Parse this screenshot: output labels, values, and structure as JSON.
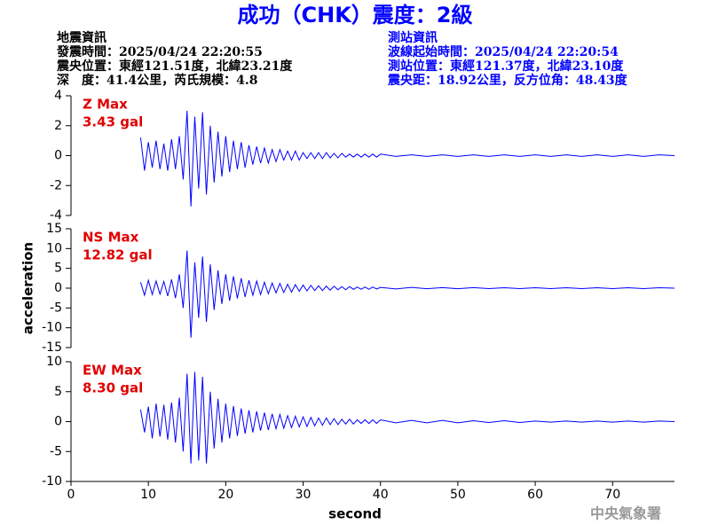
{
  "header": {
    "title": "成功（CHK）震度：2級",
    "left": [
      "地震資訊",
      "發震時間：2025/04/24 22:20:55",
      "震央位置：東經121.51度，北緯23.21度",
      "深　度：41.4公里，芮氏規模：4.8"
    ],
    "right": [
      "測站資訊",
      "波線起始時間：2025/04/24 22:20:54",
      "測站位置：東經121.37度，北緯23.10度",
      "震央距：18.92公里，反方位角：48.43度"
    ]
  },
  "footer": "中央氣象署",
  "chart_data": [
    {
      "type": "line",
      "annotation": [
        "Z Max",
        "3.43 gal"
      ],
      "color": "#0000ff",
      "xlim": [
        0,
        78
      ],
      "ylim": [
        -4,
        4
      ],
      "yticks": [
        -4,
        -2,
        0,
        2,
        4
      ],
      "x": [
        9,
        9.5,
        10,
        10.5,
        11,
        11.5,
        12,
        12.5,
        13,
        13.5,
        14,
        14.5,
        15,
        15.5,
        16,
        16.5,
        17,
        17.5,
        18,
        18.5,
        19,
        19.5,
        20,
        20.5,
        21,
        21.5,
        22,
        22.5,
        23,
        23.5,
        24,
        24.5,
        25,
        25.5,
        26,
        26.5,
        27,
        27.5,
        28,
        28.5,
        29,
        29.5,
        30,
        30.5,
        31,
        31.5,
        32,
        32.5,
        33,
        33.5,
        34,
        34.5,
        35,
        35.5,
        36,
        36.5,
        37,
        37.5,
        38,
        38.5,
        39,
        39.5,
        40,
        42,
        44,
        46,
        48,
        50,
        52,
        54,
        56,
        58,
        60,
        62,
        64,
        66,
        68,
        70,
        72,
        74,
        76,
        78
      ],
      "values": [
        1.2,
        -1.0,
        0.9,
        -0.8,
        1.0,
        -0.9,
        0.8,
        -1.0,
        1.1,
        -0.9,
        1.3,
        -1.6,
        3.0,
        -3.4,
        2.6,
        -2.2,
        2.9,
        -2.6,
        2.0,
        -1.8,
        1.6,
        -1.4,
        1.3,
        -1.1,
        1.0,
        -0.9,
        0.9,
        -0.8,
        0.7,
        -0.6,
        0.6,
        -0.5,
        0.5,
        -0.5,
        0.4,
        -0.4,
        0.4,
        -0.3,
        0.3,
        -0.3,
        0.3,
        -0.3,
        0.2,
        -0.2,
        0.2,
        -0.2,
        0.2,
        -0.2,
        0.2,
        -0.15,
        0.15,
        -0.15,
        0.15,
        -0.1,
        0.1,
        -0.1,
        0.1,
        -0.1,
        0.1,
        -0.1,
        0.1,
        -0.1,
        0.1,
        -0.05,
        0.05,
        -0.05,
        0.05,
        -0.05,
        0.05,
        -0.05,
        0.05,
        -0.05,
        0.05,
        -0.05,
        0.05,
        -0.05,
        0.05,
        -0.05,
        0.05,
        -0.05,
        0.05,
        0
      ]
    },
    {
      "type": "line",
      "annotation": [
        "NS Max",
        "12.82 gal"
      ],
      "y_label": "acceleration",
      "color": "#0000ff",
      "xlim": [
        0,
        78
      ],
      "ylim": [
        -15,
        15
      ],
      "yticks": [
        -15,
        -10,
        -5,
        0,
        5,
        10,
        15
      ],
      "x": [
        9,
        9.5,
        10,
        10.5,
        11,
        11.5,
        12,
        12.5,
        13,
        13.5,
        14,
        14.5,
        15,
        15.5,
        16,
        16.5,
        17,
        17.5,
        18,
        18.5,
        19,
        19.5,
        20,
        20.5,
        21,
        21.5,
        22,
        22.5,
        23,
        23.5,
        24,
        24.5,
        25,
        25.5,
        26,
        26.5,
        27,
        27.5,
        28,
        28.5,
        29,
        29.5,
        30,
        30.5,
        31,
        31.5,
        32,
        32.5,
        33,
        33.5,
        34,
        34.5,
        35,
        35.5,
        36,
        36.5,
        37,
        37.5,
        38,
        38.5,
        39,
        39.5,
        40,
        42,
        44,
        46,
        48,
        50,
        52,
        54,
        56,
        58,
        60,
        62,
        64,
        66,
        68,
        70,
        72,
        74,
        76,
        78
      ],
      "values": [
        1.5,
        -1.8,
        2.0,
        -1.6,
        1.8,
        -1.5,
        1.7,
        -2.0,
        2.2,
        -2.5,
        3.5,
        -5.0,
        9.5,
        -12.5,
        6.5,
        -7.5,
        8.0,
        -8.5,
        6.0,
        -5.5,
        4.5,
        -4.0,
        3.5,
        -3.2,
        3.0,
        -2.6,
        2.5,
        -2.2,
        2.0,
        -1.8,
        1.8,
        -1.6,
        1.5,
        -1.4,
        1.3,
        -1.2,
        1.2,
        -1.1,
        1.0,
        -1.0,
        0.9,
        -0.8,
        0.8,
        -0.7,
        0.7,
        -0.6,
        0.6,
        -0.6,
        0.5,
        -0.5,
        0.5,
        -0.4,
        0.4,
        -0.4,
        0.4,
        -0.3,
        0.3,
        -0.3,
        0.3,
        -0.3,
        0.3,
        -0.2,
        0.2,
        -0.2,
        0.2,
        -0.15,
        0.15,
        -0.15,
        0.15,
        -0.1,
        0.1,
        -0.1,
        0.1,
        -0.1,
        0.1,
        -0.1,
        0.1,
        -0.1,
        0.1,
        -0.1,
        0.1,
        0
      ]
    },
    {
      "type": "line",
      "annotation": [
        "EW Max",
        "8.30 gal"
      ],
      "x_label": "second",
      "color": "#0000ff",
      "xlim": [
        0,
        78
      ],
      "ylim": [
        -10,
        10
      ],
      "yticks": [
        -10,
        -5,
        0,
        5,
        10
      ],
      "xticks": [
        0,
        10,
        20,
        30,
        40,
        50,
        60,
        70
      ],
      "x": [
        9,
        9.5,
        10,
        10.5,
        11,
        11.5,
        12,
        12.5,
        13,
        13.5,
        14,
        14.5,
        15,
        15.5,
        16,
        16.5,
        17,
        17.5,
        18,
        18.5,
        19,
        19.5,
        20,
        20.5,
        21,
        21.5,
        22,
        22.5,
        23,
        23.5,
        24,
        24.5,
        25,
        25.5,
        26,
        26.5,
        27,
        27.5,
        28,
        28.5,
        29,
        29.5,
        30,
        30.5,
        31,
        31.5,
        32,
        32.5,
        33,
        33.5,
        34,
        34.5,
        35,
        35.5,
        36,
        36.5,
        37,
        37.5,
        38,
        38.5,
        39,
        39.5,
        40,
        42,
        44,
        46,
        48,
        50,
        52,
        54,
        56,
        58,
        60,
        62,
        64,
        66,
        68,
        70,
        72,
        74,
        76,
        78
      ],
      "values": [
        2.0,
        -1.8,
        2.5,
        -2.8,
        3.0,
        -2.5,
        2.8,
        -3.0,
        3.2,
        -3.5,
        4.0,
        -5.0,
        8.0,
        -7.0,
        8.3,
        -6.5,
        7.5,
        -7.0,
        5.0,
        -4.5,
        3.8,
        -3.5,
        3.0,
        -2.8,
        2.6,
        -2.4,
        2.2,
        -2.0,
        1.9,
        -1.8,
        1.7,
        -1.5,
        1.5,
        -1.4,
        1.3,
        -1.2,
        1.2,
        -1.1,
        1.0,
        -1.0,
        0.9,
        -0.9,
        0.8,
        -0.8,
        0.7,
        -0.7,
        0.6,
        -0.6,
        0.6,
        -0.5,
        0.5,
        -0.5,
        0.4,
        -0.4,
        0.4,
        -0.4,
        0.3,
        -0.3,
        0.3,
        -0.3,
        0.3,
        -0.3,
        0.3,
        -0.2,
        0.2,
        -0.2,
        0.2,
        -0.2,
        0.15,
        -0.15,
        0.15,
        -0.15,
        0.1,
        -0.1,
        0.1,
        -0.1,
        0.1,
        -0.1,
        0.1,
        -0.1,
        0.1,
        0
      ]
    }
  ]
}
